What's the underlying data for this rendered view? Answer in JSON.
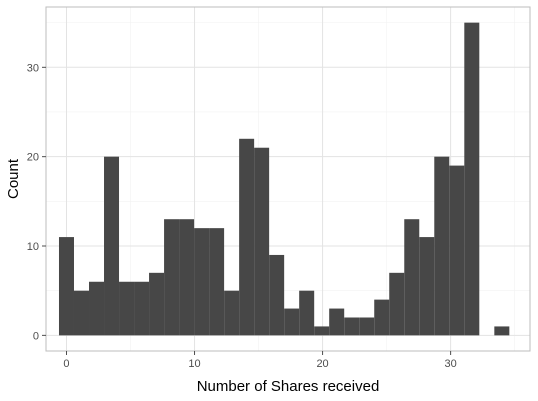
{
  "chart_data": {
    "type": "bar",
    "histogram": true,
    "binwidth": 1.172,
    "bins": [
      {
        "center": 0,
        "count": 11
      },
      {
        "center": 1.172,
        "count": 5
      },
      {
        "center": 2.345,
        "count": 6
      },
      {
        "center": 3.517,
        "count": 20
      },
      {
        "center": 4.69,
        "count": 6
      },
      {
        "center": 5.862,
        "count": 6
      },
      {
        "center": 7.034,
        "count": 7
      },
      {
        "center": 8.207,
        "count": 13
      },
      {
        "center": 9.379,
        "count": 13
      },
      {
        "center": 10.552,
        "count": 12
      },
      {
        "center": 11.724,
        "count": 12
      },
      {
        "center": 12.897,
        "count": 5
      },
      {
        "center": 14.069,
        "count": 22
      },
      {
        "center": 15.241,
        "count": 21
      },
      {
        "center": 16.414,
        "count": 9
      },
      {
        "center": 17.586,
        "count": 3
      },
      {
        "center": 18.759,
        "count": 5
      },
      {
        "center": 19.931,
        "count": 1
      },
      {
        "center": 21.103,
        "count": 3
      },
      {
        "center": 22.276,
        "count": 2
      },
      {
        "center": 23.448,
        "count": 2
      },
      {
        "center": 24.621,
        "count": 4
      },
      {
        "center": 25.793,
        "count": 7
      },
      {
        "center": 26.966,
        "count": 13
      },
      {
        "center": 28.138,
        "count": 11
      },
      {
        "center": 29.31,
        "count": 20
      },
      {
        "center": 30.483,
        "count": 19
      },
      {
        "center": 31.655,
        "count": 35
      },
      {
        "center": 32.828,
        "count": 0
      },
      {
        "center": 34.0,
        "count": 1
      }
    ],
    "xlabel": "Number of Shares received",
    "ylabel": "Count",
    "xlim": [
      -1.6,
      36.2
    ],
    "ylim": [
      -1.75,
      36.75
    ],
    "xticks": [
      0,
      10,
      20,
      30
    ],
    "yticks": [
      0,
      10,
      20,
      30
    ],
    "grid": true,
    "bar_color": "#474747",
    "grid_major_color": "#e3e3e3",
    "grid_minor_color": "#f2f2f2",
    "panel_border_color": "#bdbdbd"
  }
}
